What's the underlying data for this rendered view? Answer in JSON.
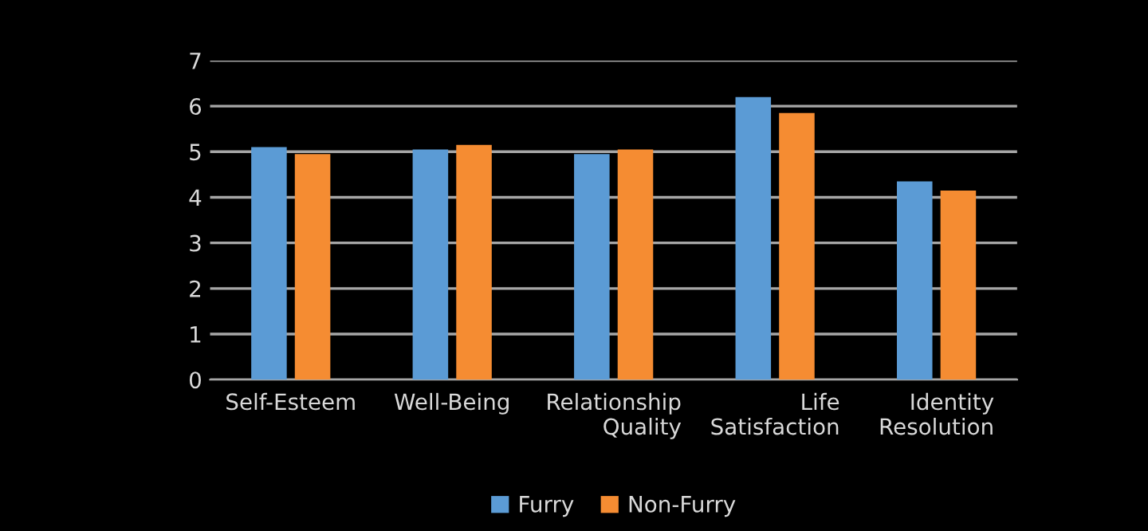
{
  "chart_data": {
    "type": "bar",
    "categories": [
      "Self-Esteem",
      "Well-Being",
      "Relationship\nQuality",
      "Life\nSatisfaction",
      "Identity\nResolution"
    ],
    "series": [
      {
        "name": "Furry",
        "color": "#5b9bd5",
        "values": [
          5.1,
          5.05,
          4.95,
          6.2,
          4.35
        ]
      },
      {
        "name": "Non-Furry",
        "color": "#f58c32",
        "values": [
          4.95,
          5.15,
          5.05,
          5.85,
          4.15
        ]
      }
    ],
    "ylim": [
      0,
      7
    ],
    "yticks": [
      0,
      1,
      2,
      3,
      4,
      5,
      6,
      7
    ],
    "grid": "y",
    "legend": "bottom"
  }
}
